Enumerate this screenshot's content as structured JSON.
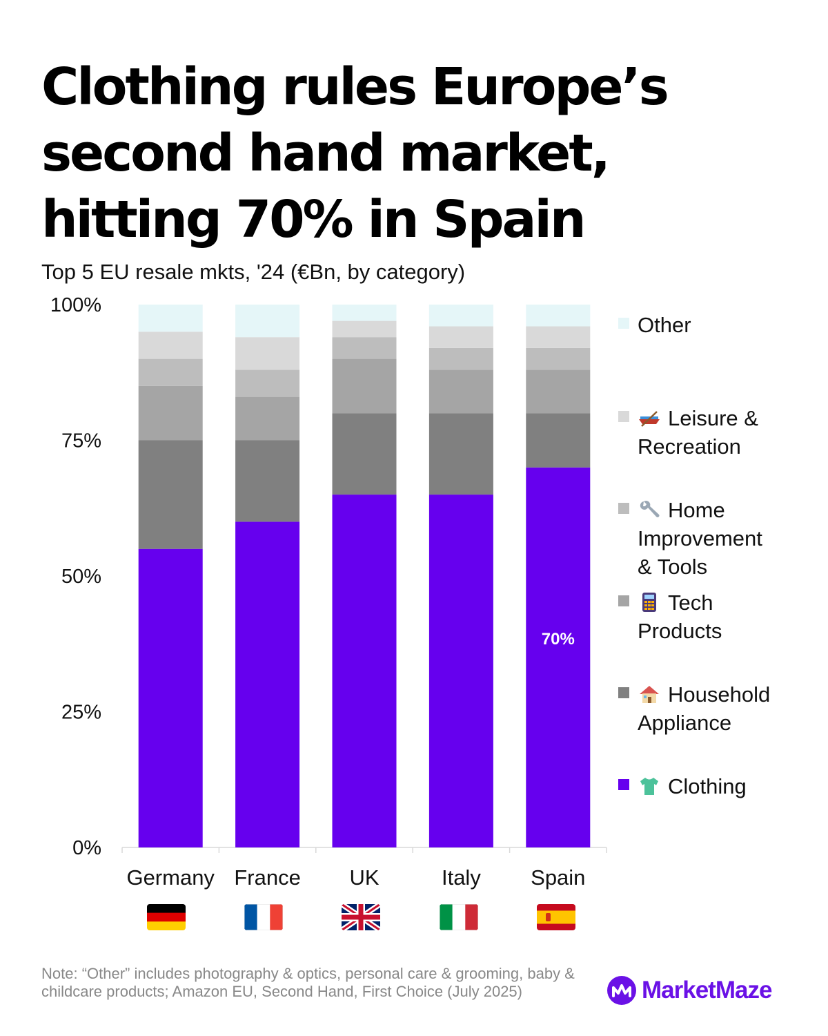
{
  "header": {
    "title_lines": [
      "Clothing rules Europe’s",
      "second hand market,",
      "hitting 70% in Spain"
    ],
    "subtitle": "Top 5 EU resale mkts, '24 (€Bn, by category)"
  },
  "chart_data": {
    "type": "bar",
    "stacked": true,
    "categories": [
      "Germany",
      "France",
      "UK",
      "Italy",
      "Spain"
    ],
    "ylim": [
      0,
      100
    ],
    "yticks": [
      "0%",
      "25%",
      "50%",
      "75%",
      "100%"
    ],
    "grid": false,
    "legend_position": "right",
    "series": [
      {
        "name": "Clothing",
        "color": "#6600ee",
        "icon": "t-shirt-icon",
        "values": [
          55,
          60,
          65,
          65,
          70
        ]
      },
      {
        "name": "Household Appliance",
        "color": "#808080",
        "icon": "house-icon",
        "values": [
          20,
          15,
          15,
          15,
          10
        ]
      },
      {
        "name": "Tech Products",
        "color": "#a5a5a5",
        "icon": "calculator-icon",
        "values": [
          10,
          8,
          10,
          8,
          8
        ]
      },
      {
        "name": "Home Improvement & Tools",
        "color": "#bdbdbd",
        "icon": "wrench-icon",
        "values": [
          5,
          5,
          4,
          4,
          4
        ]
      },
      {
        "name": "Leisure & Recreation",
        "color": "#d9d9d9",
        "icon": "canoe-icon",
        "values": [
          5,
          6,
          3,
          4,
          4
        ]
      },
      {
        "name": "Other",
        "color": "#e5f6f8",
        "icon": "",
        "values": [
          5,
          6,
          3,
          4,
          4
        ]
      }
    ],
    "annotations": [
      {
        "category": "Spain",
        "series": "Clothing",
        "text": "70%"
      }
    ]
  },
  "legend": [
    {
      "text": "Other",
      "color": "#e5f6f8",
      "icon": ""
    },
    {
      "text": "Leisure & Recreation",
      "color": "#d9d9d9",
      "icon": "canoe-icon"
    },
    {
      "text": "Home Improvement & Tools",
      "color": "#bdbdbd",
      "icon": "wrench-icon"
    },
    {
      "text": "Tech Products",
      "color": "#a5a5a5",
      "icon": "calculator-icon"
    },
    {
      "text": "Household Appliance",
      "color": "#808080",
      "icon": "house-icon"
    },
    {
      "text": "Clothing",
      "color": "#6600ee",
      "icon": "t-shirt-icon"
    }
  ],
  "flags": [
    "germany-flag-icon",
    "france-flag-icon",
    "uk-flag-icon",
    "italy-flag-icon",
    "spain-flag-icon"
  ],
  "footer": {
    "note": "Note: “Other” includes photography & optics, personal care & grooming, baby & childcare products; Amazon EU, Second Hand, First Choice (July 2025)",
    "brand": "MarketMaze",
    "brand_color": "#6a11e6"
  }
}
